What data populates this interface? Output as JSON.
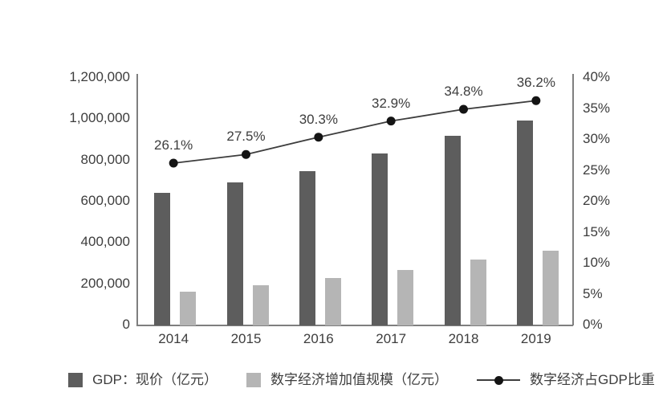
{
  "page": {
    "background": "#ffffff"
  },
  "colors": {
    "gdp_bar": "#5d5d5d",
    "digital_bar": "#b5b5b5",
    "ratio_line": "#3d3d3d",
    "ratio_marker": "#141414",
    "axis_line": "#7f7f7f",
    "text": "#3d3d3d"
  },
  "chart_data": {
    "type": "bar",
    "categories": [
      "2014",
      "2015",
      "2016",
      "2017",
      "2018",
      "2019"
    ],
    "series": [
      {
        "name": "GDP：现价（亿元）",
        "type": "bar",
        "axis": "left",
        "color": "#5d5d5d",
        "values": [
          640000,
          690000,
          745000,
          830000,
          917000,
          990000
        ]
      },
      {
        "name": "数字经济增加值规模（亿元）",
        "type": "bar",
        "axis": "left",
        "color": "#b5b5b5",
        "values": [
          160000,
          190000,
          225000,
          265000,
          315000,
          358000
        ]
      },
      {
        "name": "数字经济占GDP比重",
        "type": "line",
        "axis": "right",
        "color": "#3d3d3d",
        "marker_color": "#141414",
        "values": [
          26.1,
          27.5,
          30.3,
          32.9,
          34.8,
          36.2
        ],
        "point_labels": [
          "26.1%",
          "27.5%",
          "30.3%",
          "32.9%",
          "34.8%",
          "36.2%"
        ]
      }
    ],
    "left_axis": {
      "min": 0,
      "max": 1200000,
      "step": 200000,
      "tick_labels": [
        "1,200,000",
        "1,000,000",
        "800,000",
        "600,000",
        "400,000",
        "200,000",
        "0"
      ]
    },
    "right_axis": {
      "min": 0,
      "max": 40,
      "step": 5,
      "tick_labels": [
        "40%",
        "35%",
        "30%",
        "25%",
        "20%",
        "15%",
        "10%",
        "5%",
        "0%"
      ]
    },
    "grid": false,
    "legend_position": "bottom"
  }
}
